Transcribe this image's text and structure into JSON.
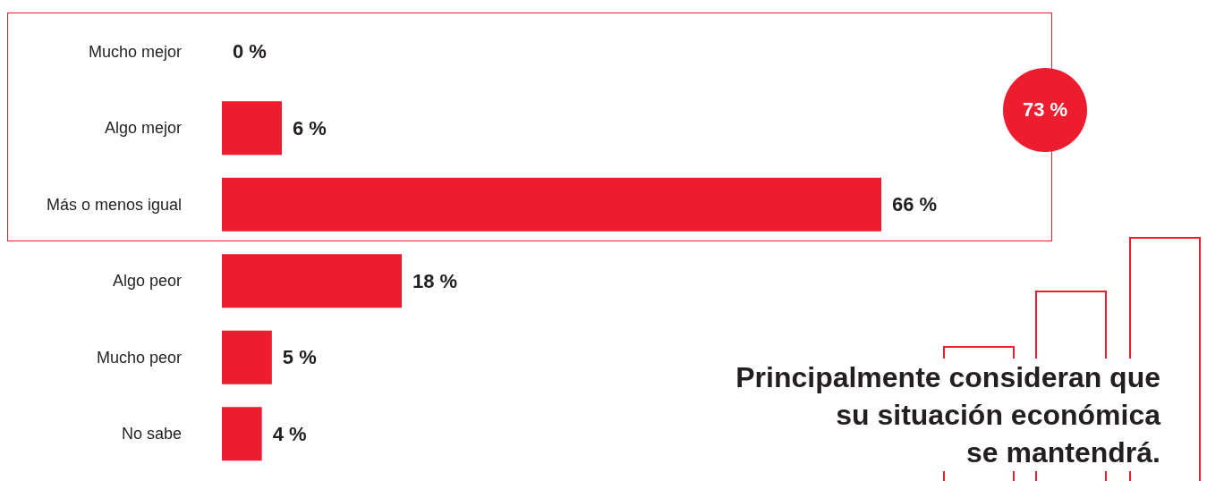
{
  "chart_data": {
    "type": "bar",
    "orientation": "horizontal",
    "categories": [
      "Mucho mejor",
      "Algo mejor",
      "Más o menos igual",
      "Algo peor",
      "Mucho peor",
      "No sabe"
    ],
    "values": [
      0,
      6,
      66,
      18,
      5,
      4
    ],
    "value_labels": [
      "0 %",
      "6 %",
      "66 %",
      "18 %",
      "5 %",
      "4 %"
    ],
    "color": "#ed1c2e",
    "annotations": [
      "73 %",
      "Principalmente consideran que\nsu situación económica\nse mantendrá."
    ]
  }
}
